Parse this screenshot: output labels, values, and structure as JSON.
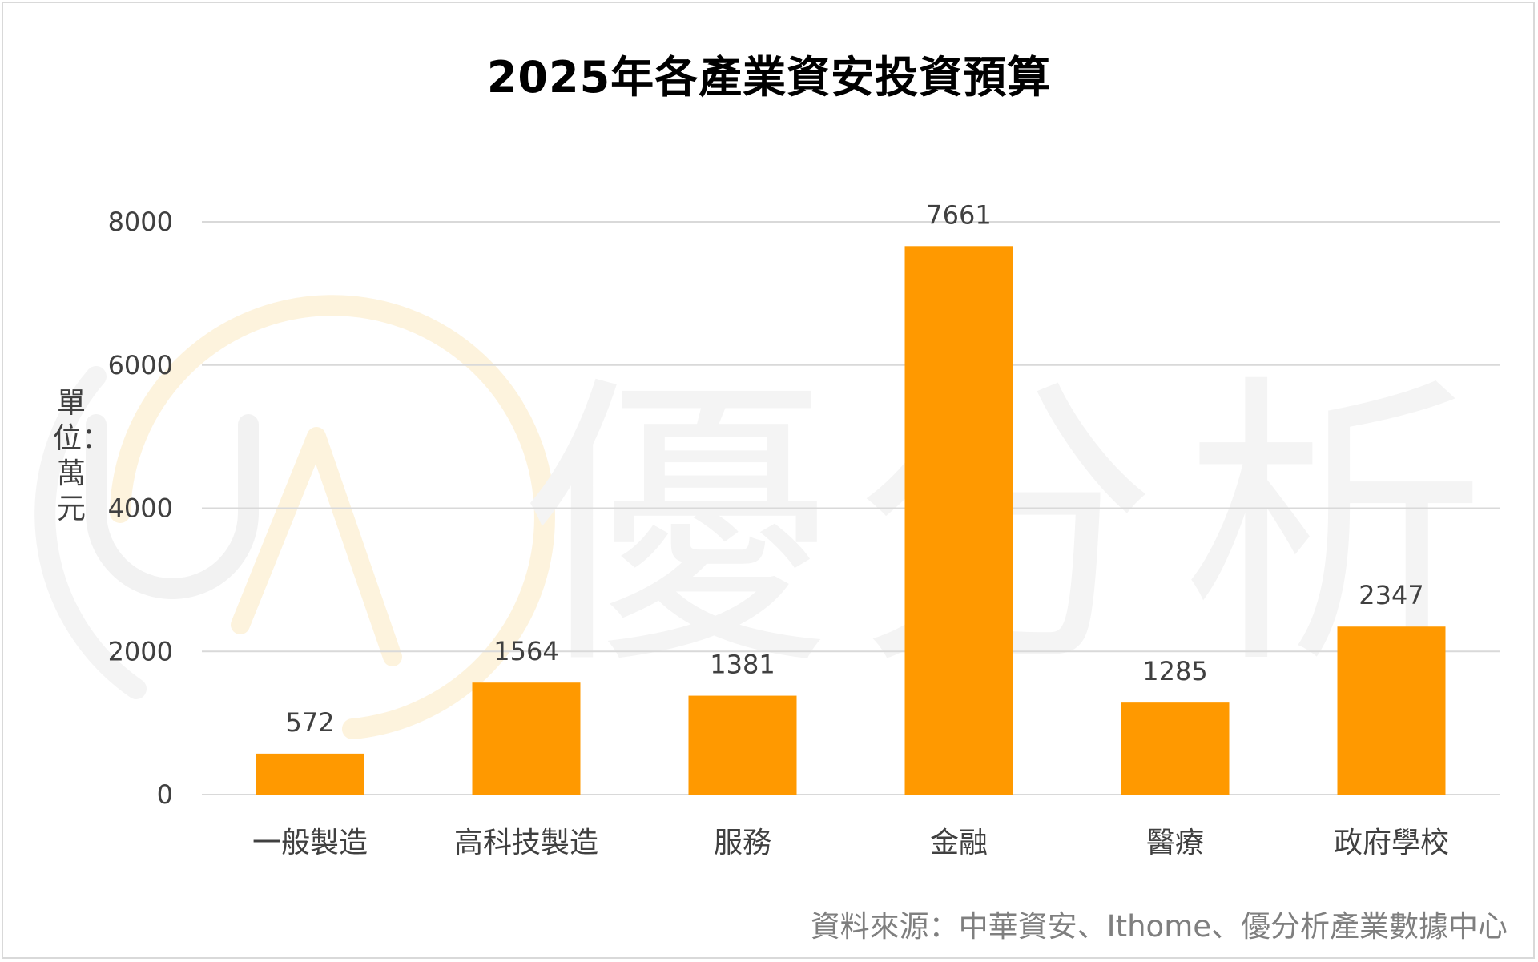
{
  "chart_data": {
    "type": "bar",
    "title": "2025年各產業資安投資預算",
    "ylabel": "單位：萬元",
    "xlabel": "",
    "categories": [
      "一般製造",
      "高科技製造",
      "服務",
      "金融",
      "醫療",
      "政府學校"
    ],
    "values": [
      572,
      1564,
      1381,
      7661,
      1285,
      2347
    ],
    "data_labels": [
      "572",
      "1564",
      "1381",
      "7661",
      "1285",
      "2347"
    ],
    "ylim": [
      0,
      8000
    ],
    "yticks": [
      0,
      2000,
      4000,
      6000,
      8000
    ],
    "ytick_labels": [
      "0",
      "2000",
      "4000",
      "6000",
      "8000"
    ],
    "grid": true,
    "bar_color": "#FF9900",
    "grid_color": "#D9D9D9",
    "source": "資料來源：中華資安、Ithome、優分析產業數據中心",
    "watermark": "優分析"
  }
}
